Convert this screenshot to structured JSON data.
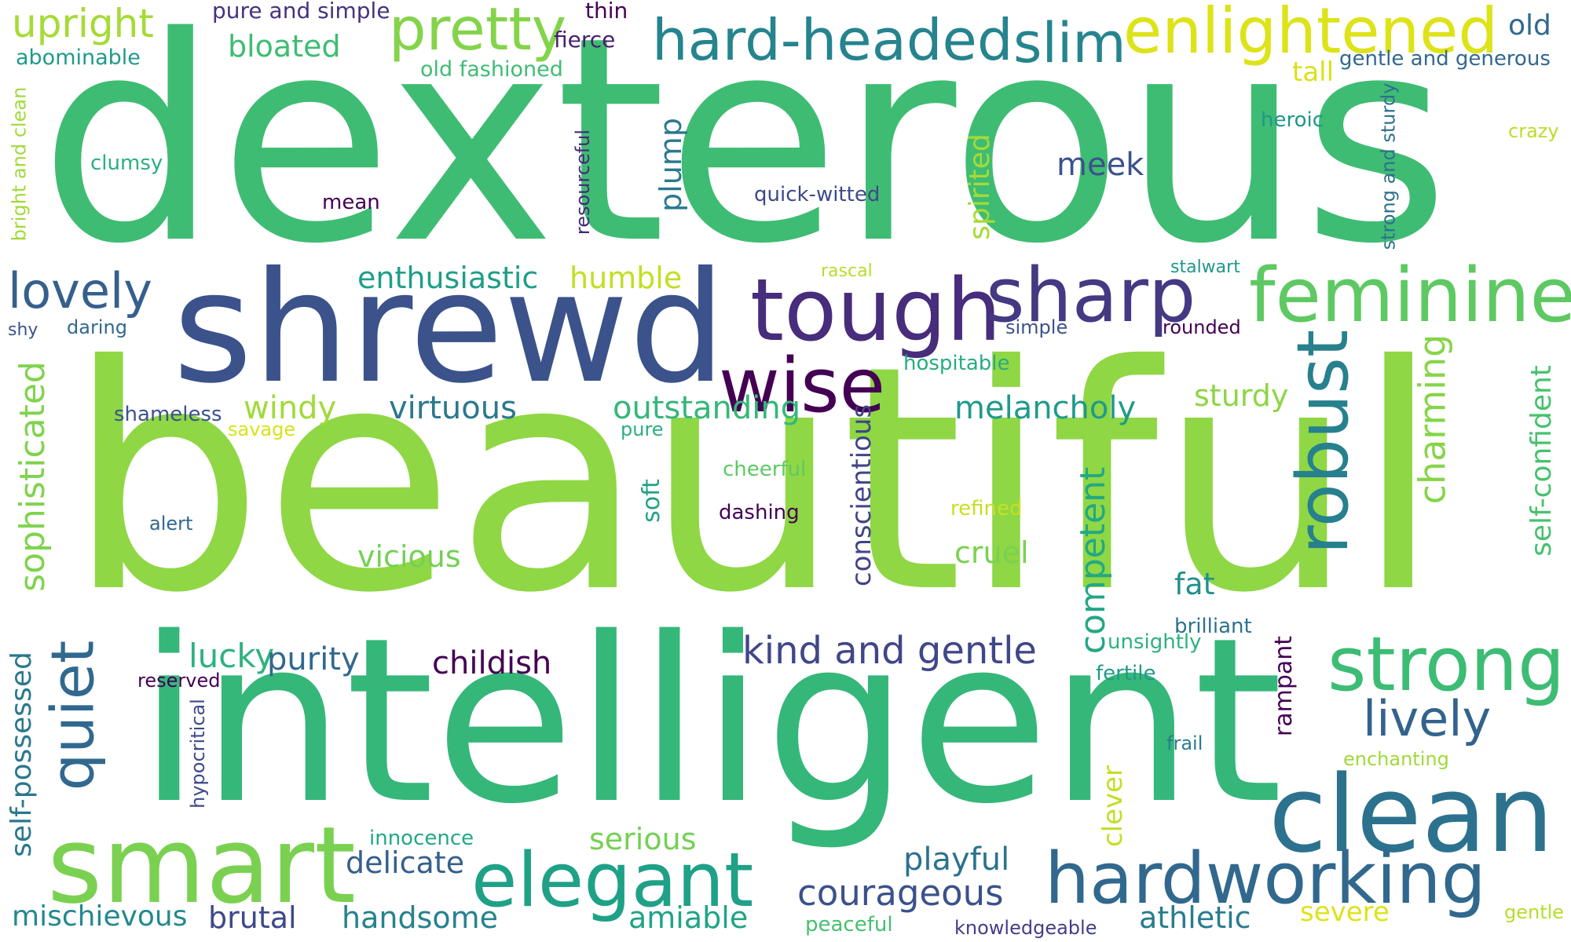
{
  "words": [
    {
      "text": "dexterous",
      "color": "#3fbc73"
    },
    {
      "text": "beautiful",
      "color": "#8fd744"
    },
    {
      "text": "intelligent",
      "color": "#35b779"
    },
    {
      "text": "shrewd",
      "color": "#3b528b"
    },
    {
      "text": "smart",
      "color": "#7ad151"
    },
    {
      "text": "clean",
      "color": "#2c728e"
    },
    {
      "text": "tough",
      "color": "#472d7b"
    },
    {
      "text": "feminine",
      "color": "#5ec962"
    },
    {
      "text": "strong",
      "color": "#3dbc74"
    },
    {
      "text": "hardworking",
      "color": "#31688e"
    },
    {
      "text": "elegant",
      "color": "#1fa187"
    },
    {
      "text": "robust",
      "color": "#27808e"
    },
    {
      "text": "quiet",
      "color": "#31688e"
    },
    {
      "text": "wise",
      "color": "#440154"
    },
    {
      "text": "sharp",
      "color": "#443983"
    },
    {
      "text": "enlightened",
      "color": "#dde318"
    },
    {
      "text": "hard-headed",
      "color": "#25848e"
    },
    {
      "text": "slim",
      "color": "#25858e"
    },
    {
      "text": "pretty",
      "color": "#84d44b"
    },
    {
      "text": "lovely",
      "color": "#355f8d"
    },
    {
      "text": "lively",
      "color": "#33638d"
    },
    {
      "text": "kind and gentle",
      "color": "#3f4788"
    },
    {
      "text": "courageous",
      "color": "#3b518b"
    },
    {
      "text": "upright",
      "color": "#a5db36"
    },
    {
      "text": "charming",
      "color": "#86d549"
    },
    {
      "text": "competent",
      "color": "#22a884"
    },
    {
      "text": "conscientious",
      "color": "#414487"
    },
    {
      "text": "self-confident",
      "color": "#48c16e"
    },
    {
      "text": "sophisticated",
      "color": "#7fd34e"
    },
    {
      "text": "self-possessed",
      "color": "#2a788e"
    },
    {
      "text": "rampant",
      "color": "#440154"
    },
    {
      "text": "clever",
      "color": "#c2df23"
    },
    {
      "text": "plump",
      "color": "#2a788e"
    },
    {
      "text": "spirited",
      "color": "#a5db36"
    },
    {
      "text": "enthusiastic",
      "color": "#1f9e89"
    },
    {
      "text": "humble",
      "color": "#c2df23"
    },
    {
      "text": "meek",
      "color": "#3b528b"
    },
    {
      "text": "melancholy",
      "color": "#1f9a8a"
    },
    {
      "text": "outstanding",
      "color": "#35b779"
    },
    {
      "text": "virtuous",
      "color": "#2a788e"
    },
    {
      "text": "windy",
      "color": "#a0da39"
    },
    {
      "text": "bloated",
      "color": "#3fbc73"
    },
    {
      "text": "sturdy",
      "color": "#8ed645"
    },
    {
      "text": "cruel",
      "color": "#7ad151"
    },
    {
      "text": "vicious",
      "color": "#75d054"
    },
    {
      "text": "fat",
      "color": "#21918c"
    },
    {
      "text": "childish",
      "color": "#440154"
    },
    {
      "text": "lucky",
      "color": "#2db27d"
    },
    {
      "text": "purity",
      "color": "#31688e"
    },
    {
      "text": "delicate",
      "color": "#355f8d"
    },
    {
      "text": "playful",
      "color": "#2c728e"
    },
    {
      "text": "serious",
      "color": "#75d054"
    },
    {
      "text": "amiable",
      "color": "#20a486"
    },
    {
      "text": "athletic",
      "color": "#287c8e"
    },
    {
      "text": "handsome",
      "color": "#26828e"
    },
    {
      "text": "brutal",
      "color": "#3e4989"
    },
    {
      "text": "mischievous",
      "color": "#23898e"
    },
    {
      "text": "severe",
      "color": "#dde318"
    },
    {
      "text": "soft",
      "color": "#20a386"
    },
    {
      "text": "tall",
      "color": "#d8e219"
    },
    {
      "text": "old",
      "color": "#30698e"
    },
    {
      "text": "resourceful",
      "color": "#482878"
    },
    {
      "text": "bright and clean",
      "color": "#a0da39"
    },
    {
      "text": "strong and sturdy",
      "color": "#2d708e"
    },
    {
      "text": "hypocritical",
      "color": "#3e4989"
    },
    {
      "text": "pure and simple",
      "color": "#46327e"
    },
    {
      "text": "thin",
      "color": "#440154"
    },
    {
      "text": "fierce",
      "color": "#481f70"
    },
    {
      "text": "abominable",
      "color": "#1f9a8a"
    },
    {
      "text": "old fashioned",
      "color": "#3fbc73"
    },
    {
      "text": "gentle and generous",
      "color": "#31688e"
    },
    {
      "text": "heroic",
      "color": "#1f968b"
    },
    {
      "text": "crazy",
      "color": "#b8de29"
    },
    {
      "text": "clumsy",
      "color": "#29af7f"
    },
    {
      "text": "quick-witted",
      "color": "#3e4989"
    },
    {
      "text": "mean",
      "color": "#440154"
    },
    {
      "text": "rascal",
      "color": "#b5de2b"
    },
    {
      "text": "stalwart",
      "color": "#1f968b"
    },
    {
      "text": "shy",
      "color": "#3b528b"
    },
    {
      "text": "daring",
      "color": "#31688e"
    },
    {
      "text": "simple",
      "color": "#3b528b"
    },
    {
      "text": "rounded",
      "color": "#440154"
    },
    {
      "text": "hospitable",
      "color": "#27ad81"
    },
    {
      "text": "shameless",
      "color": "#3b528b"
    },
    {
      "text": "savage",
      "color": "#d8e219"
    },
    {
      "text": "pure",
      "color": "#29af7f"
    },
    {
      "text": "cheerful",
      "color": "#5ec962"
    },
    {
      "text": "dashing",
      "color": "#440154"
    },
    {
      "text": "refined",
      "color": "#c8e020"
    },
    {
      "text": "alert",
      "color": "#31688e"
    },
    {
      "text": "brilliant",
      "color": "#2c728e"
    },
    {
      "text": "unsightly",
      "color": "#2db27d"
    },
    {
      "text": "fertile",
      "color": "#1f9a8a"
    },
    {
      "text": "reserved",
      "color": "#440154"
    },
    {
      "text": "frail",
      "color": "#287c8e"
    },
    {
      "text": "enchanting",
      "color": "#a0da39"
    },
    {
      "text": "innocence",
      "color": "#22a884"
    },
    {
      "text": "peaceful",
      "color": "#46c06f"
    },
    {
      "text": "knowledgeable",
      "color": "#433e85"
    },
    {
      "text": "gentle",
      "color": "#b5de2b"
    }
  ]
}
